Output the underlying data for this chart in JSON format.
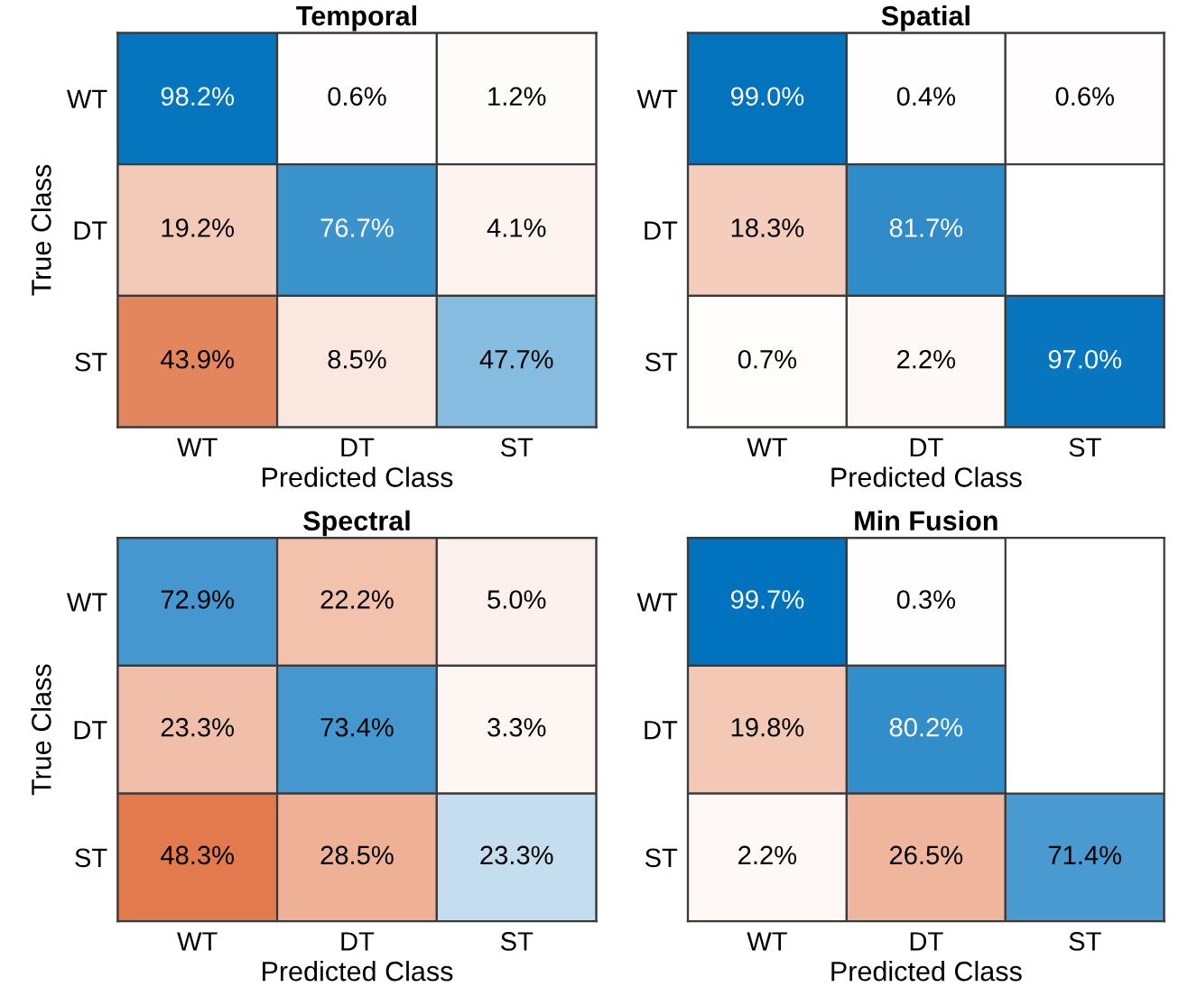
{
  "chart_data": [
    {
      "type": "heatmap",
      "title": "Temporal",
      "xlabel": "Predicted Class",
      "ylabel": "True Class",
      "categories": [
        "WT",
        "DT",
        "ST"
      ],
      "y_categories": [
        "WT",
        "DT",
        "ST"
      ],
      "colors": [
        "#0072bd",
        "#d95319"
      ],
      "cells": [
        [
          98.2,
          0.6,
          1.2
        ],
        [
          19.2,
          76.7,
          4.1
        ],
        [
          43.9,
          8.5,
          47.7
        ]
      ],
      "cell_labels": [
        [
          "98.2%",
          "0.6%",
          "1.2%"
        ],
        [
          "19.2%",
          "76.7%",
          "4.1%"
        ],
        [
          "43.9%",
          "8.5%",
          "47.7%"
        ]
      ]
    },
    {
      "type": "heatmap",
      "title": "Spatial",
      "xlabel": "Predicted Class",
      "categories": [
        "WT",
        "DT",
        "ST"
      ],
      "y_categories": [
        "WT",
        "DT",
        "ST"
      ],
      "colors": [
        "#0072bd",
        "#d95319"
      ],
      "cells": [
        [
          99.0,
          0.4,
          0.6
        ],
        [
          18.3,
          81.7,
          null
        ],
        [
          0.7,
          2.2,
          97.0
        ]
      ],
      "cell_labels": [
        [
          "99.0%",
          "0.4%",
          "0.6%"
        ],
        [
          "18.3%",
          "81.7%",
          null
        ],
        [
          "0.7%",
          "2.2%",
          "97.0%"
        ]
      ]
    },
    {
      "type": "heatmap",
      "title": "Spectral",
      "xlabel": "Predicted Class",
      "ylabel": "True Class",
      "categories": [
        "WT",
        "DT",
        "ST"
      ],
      "y_categories": [
        "WT",
        "DT",
        "ST"
      ],
      "colors": [
        "#0072bd",
        "#d95319"
      ],
      "cells": [
        [
          72.9,
          22.2,
          5.0
        ],
        [
          23.3,
          73.4,
          3.3
        ],
        [
          48.3,
          28.5,
          23.3
        ]
      ],
      "cell_labels": [
        [
          "72.9%",
          "22.2%",
          "5.0%"
        ],
        [
          "23.3%",
          "73.4%",
          "3.3%"
        ],
        [
          "48.3%",
          "28.5%",
          "23.3%"
        ]
      ]
    },
    {
      "type": "heatmap",
      "title": "Min Fusion",
      "xlabel": "Predicted Class",
      "categories": [
        "WT",
        "DT",
        "ST"
      ],
      "y_categories": [
        "WT",
        "DT",
        "ST"
      ],
      "colors": [
        "#0072bd",
        "#d95319"
      ],
      "cells": [
        [
          99.7,
          0.3,
          null
        ],
        [
          19.8,
          80.2,
          null
        ],
        [
          2.2,
          26.5,
          71.4
        ]
      ],
      "cell_labels": [
        [
          "99.7%",
          "0.3%",
          null
        ],
        [
          "19.8%",
          "80.2%",
          null
        ],
        [
          "2.2%",
          "26.5%",
          "71.4%"
        ]
      ]
    }
  ]
}
